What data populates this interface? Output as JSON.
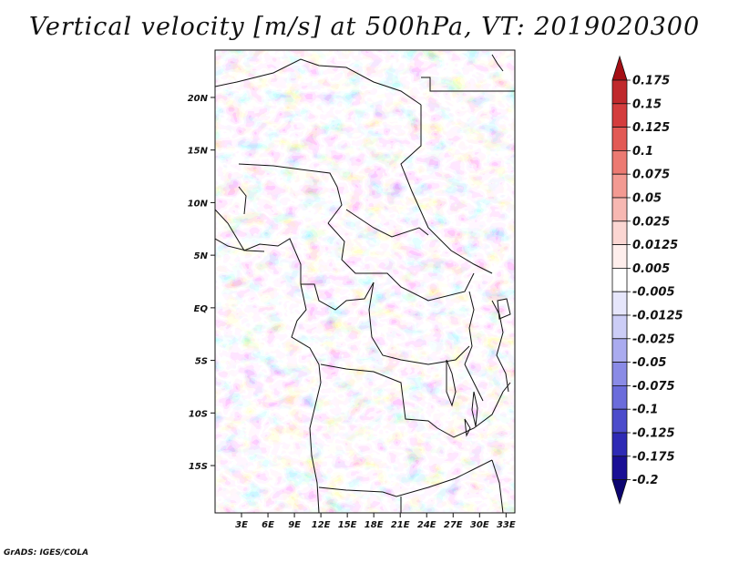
{
  "chart_data": {
    "type": "heatmap",
    "title": "Vertical velocity [m/s] at 500hPa, VT: 2019020300",
    "variable": "Vertical velocity",
    "units": "m/s",
    "level": "500hPa",
    "valid_time": "2019020300",
    "x_range": [
      0,
      34
    ],
    "y_range": [
      -19.5,
      24.5
    ],
    "x_ticks": [
      3,
      6,
      9,
      12,
      15,
      18,
      21,
      24,
      27,
      30,
      33
    ],
    "x_tick_labels": [
      "3E",
      "6E",
      "9E",
      "12E",
      "15E",
      "18E",
      "21E",
      "24E",
      "27E",
      "30E",
      "33E"
    ],
    "y_ticks": [
      20,
      15,
      10,
      5,
      0,
      -5,
      -10,
      -15
    ],
    "y_tick_labels": [
      "20N",
      "15N",
      "10N",
      "5N",
      "EQ",
      "5S",
      "10S",
      "15S"
    ],
    "colorbar": {
      "levels": [
        "0.175",
        "0.15",
        "0.125",
        "0.1",
        "0.075",
        "0.05",
        "0.025",
        "0.0125",
        "0.005",
        "-0.005",
        "-0.0125",
        "-0.025",
        "-0.05",
        "-0.075",
        "-0.1",
        "-0.125",
        "-0.175",
        "-0.2"
      ],
      "colors": [
        "#a50f15",
        "#c0292c",
        "#d43d3d",
        "#e25a55",
        "#ec7a72",
        "#f39a92",
        "#f7b8b2",
        "#fbd6d2",
        "#feeeec",
        "#ffffff",
        "#e6e6fb",
        "#cccdf6",
        "#aaabef",
        "#8a8be6",
        "#6b6cdb",
        "#4c4ccc",
        "#2e2ab5",
        "#1a0f95",
        "#0c0570"
      ]
    }
  },
  "footer": {
    "credit": "GrADS: IGES/COLA"
  }
}
